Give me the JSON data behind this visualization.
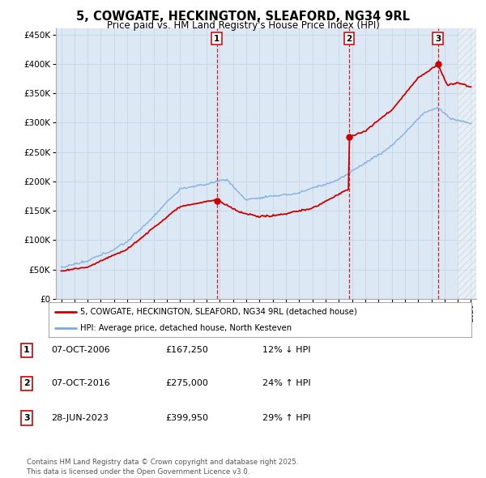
{
  "title": "5, COWGATE, HECKINGTON, SLEAFORD, NG34 9RL",
  "subtitle": "Price paid vs. HM Land Registry's House Price Index (HPI)",
  "title_fontsize": 11,
  "subtitle_fontsize": 9,
  "background_color": "#ffffff",
  "grid_color": "#c8d8e8",
  "plot_bg": "#dce8f4",
  "ylim": [
    0,
    460000
  ],
  "yticks": [
    0,
    50000,
    100000,
    150000,
    200000,
    250000,
    300000,
    350000,
    400000,
    450000
  ],
  "xlim_start": 1994.6,
  "xlim_end": 2026.4,
  "sale_dates": [
    2006.77,
    2016.77,
    2023.49
  ],
  "sale_prices": [
    167250,
    275000,
    399950
  ],
  "sale_labels": [
    "1",
    "2",
    "3"
  ],
  "red_line_color": "#cc0000",
  "blue_line_color": "#7aaadd",
  "sale_marker_color": "#cc0000",
  "vline_color": "#cc0000",
  "legend_label_red": "5, COWGATE, HECKINGTON, SLEAFORD, NG34 9RL (detached house)",
  "legend_label_blue": "HPI: Average price, detached house, North Kesteven",
  "table_rows": [
    {
      "num": "1",
      "date": "07-OCT-2006",
      "price": "£167,250",
      "change": "12% ↓ HPI"
    },
    {
      "num": "2",
      "date": "07-OCT-2016",
      "price": "£275,000",
      "change": "24% ↑ HPI"
    },
    {
      "num": "3",
      "date": "28-JUN-2023",
      "price": "£399,950",
      "change": "29% ↑ HPI"
    }
  ],
  "footer": "Contains HM Land Registry data © Crown copyright and database right 2025.\nThis data is licensed under the Open Government Licence v3.0."
}
